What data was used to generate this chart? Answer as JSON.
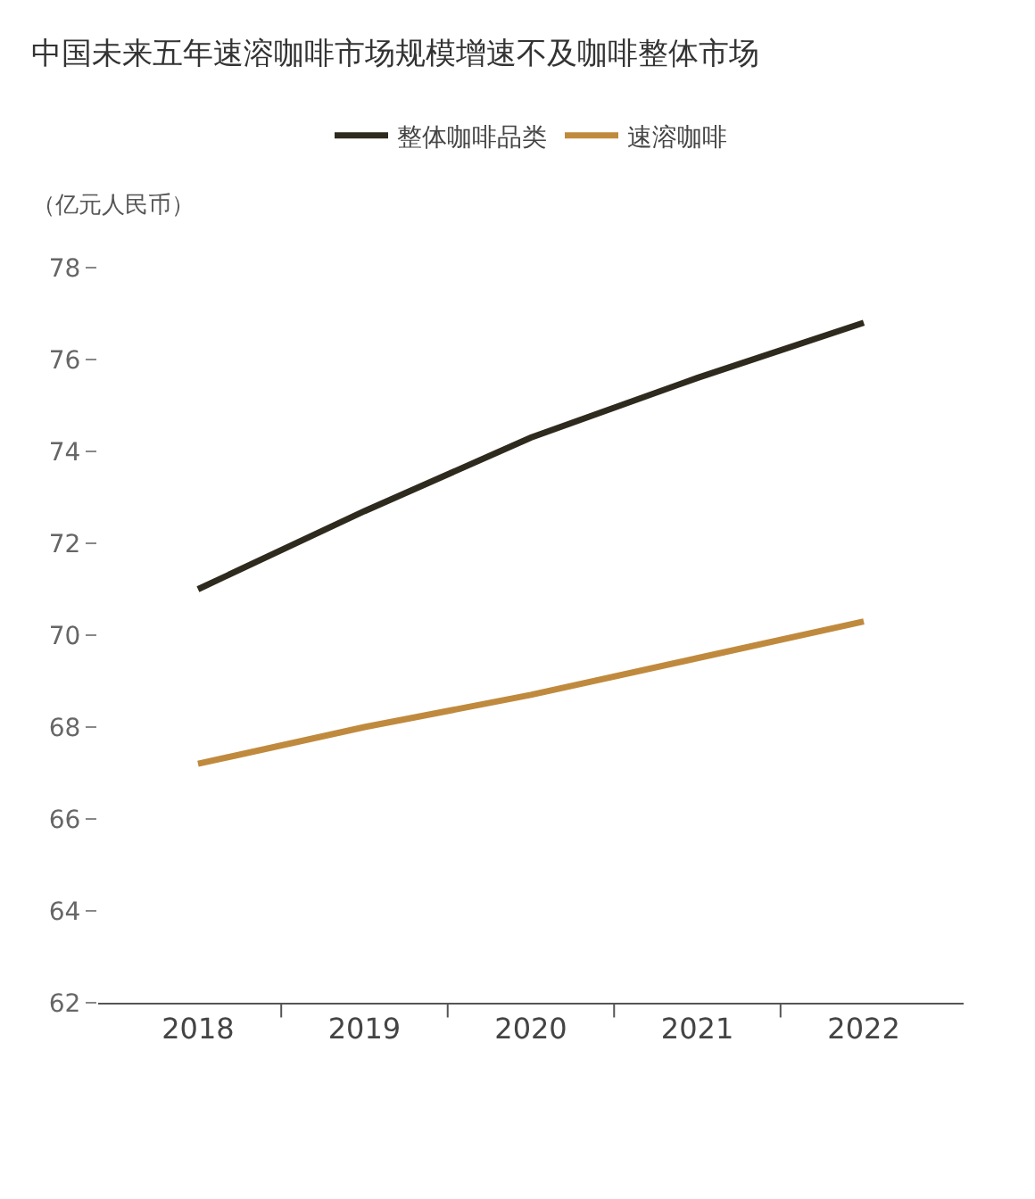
{
  "chart_data": {
    "type": "line",
    "title": "中国未来五年速溶咖啡市场规模增速不及咖啡整体市场",
    "ylabel": "（亿元人民币）",
    "categories": [
      "2018",
      "2019",
      "2020",
      "2021",
      "2022"
    ],
    "series": [
      {
        "name": "整体咖啡品类",
        "color": "#2e2a1e",
        "values": [
          71.0,
          72.7,
          74.3,
          75.6,
          76.8
        ]
      },
      {
        "name": "速溶咖啡",
        "color": "#c08a3e",
        "values": [
          67.2,
          68.0,
          68.7,
          69.5,
          70.3
        ]
      }
    ],
    "ylim": [
      62,
      78
    ],
    "yticks": [
      62,
      64,
      66,
      68,
      70,
      72,
      74,
      76,
      78
    ],
    "legend": "top",
    "marker": "none",
    "line_style": "solid"
  }
}
